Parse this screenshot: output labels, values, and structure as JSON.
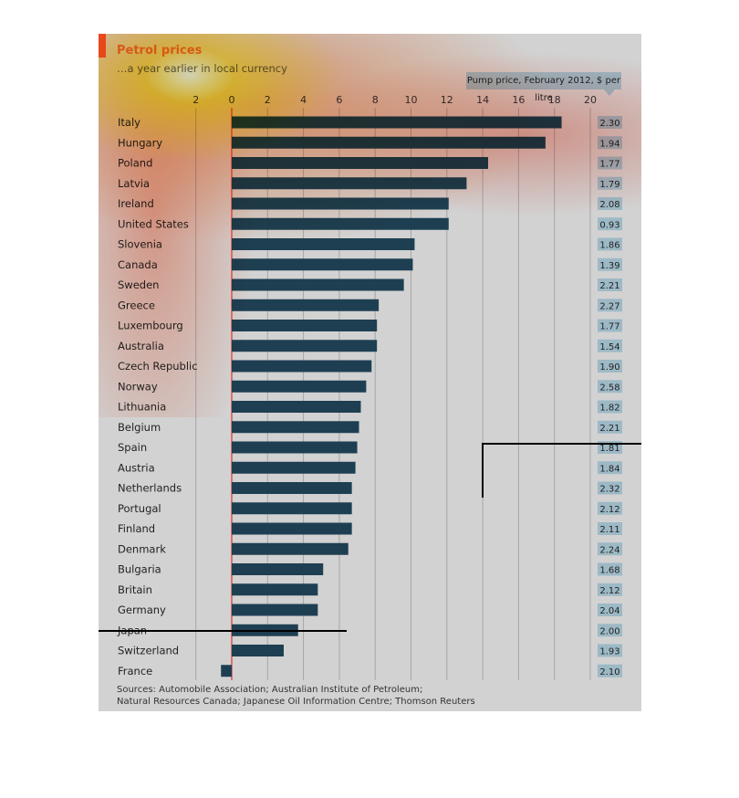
{
  "chart_data": {
    "type": "bar",
    "orientation": "horizontal",
    "title": "Petrol prices",
    "subtitle": "…a year earlier in local currency",
    "subtitle_line2": "",
    "xlim": [
      -2,
      20
    ],
    "x_ticks": [
      "2",
      "0",
      "2",
      "4",
      "6",
      "8",
      "10",
      "12",
      "14",
      "16",
      "18",
      "20"
    ],
    "x_tick_values": [
      -2,
      0,
      2,
      4,
      6,
      8,
      10,
      12,
      14,
      16,
      18,
      20
    ],
    "grid": true,
    "categories": [
      "Italy",
      "Hungary",
      "Poland",
      "Latvia",
      "Ireland",
      "United States",
      "Slovenia",
      "Canada",
      "Sweden",
      "Greece",
      "Luxembourg",
      "Australia",
      "Czech Republic",
      "Norway",
      "Lithuania",
      "Belgium",
      "Spain",
      "Austria",
      "Netherlands",
      "Portugal",
      "Finland",
      "Denmark",
      "Bulgaria",
      "Britain",
      "Germany",
      "Japan",
      "Switzerland",
      "France"
    ],
    "values": [
      18.4,
      17.5,
      14.3,
      13.1,
      12.1,
      12.1,
      10.2,
      10.1,
      9.6,
      8.2,
      8.1,
      8.1,
      7.8,
      7.5,
      7.2,
      7.1,
      7.0,
      6.9,
      6.7,
      6.7,
      6.7,
      6.5,
      5.1,
      4.8,
      4.8,
      3.7,
      2.9,
      -0.6
    ],
    "pump_header": "Pump price, February 2012, $ per litre",
    "pump_prices": [
      "2.30",
      "1.94",
      "1.77",
      "1.79",
      "2.08",
      "0.93",
      "1.86",
      "1.39",
      "2.21",
      "2.27",
      "1.77",
      "1.54",
      "1.90",
      "2.58",
      "1.82",
      "2.21",
      "1.81",
      "1.84",
      "2.32",
      "2.12",
      "2.11",
      "2.24",
      "1.68",
      "2.12",
      "2.04",
      "2.00",
      "1.93",
      "2.10"
    ]
  },
  "sources_line1": "Sources: Automobile Association; Australian Institute of Petroleum;",
  "sources_line2": "Natural Resources Canada; Japanese Oil Information Centre; Thomson Reuters",
  "colors": {
    "bar": "#1e3f52",
    "zero_line": "#d9362c",
    "panel": "#d2d2d2",
    "pump_box": "#9db9c6",
    "accent": "#e8542b"
  }
}
